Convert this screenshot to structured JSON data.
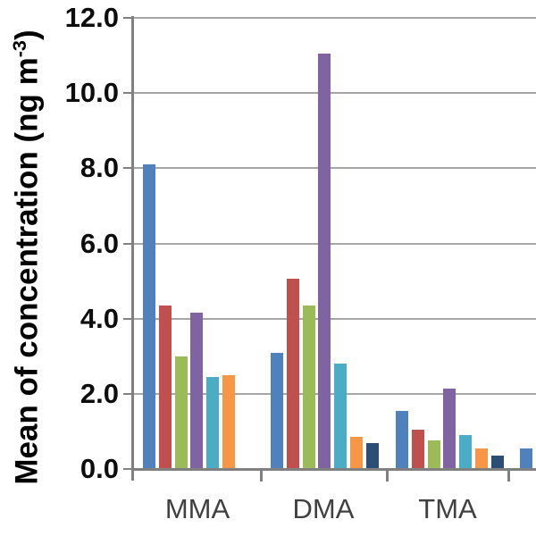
{
  "chart_data": {
    "type": "bar",
    "title": "",
    "xlabel": "",
    "ylabel_prefix": "Mean of concentration (ng m",
    "ylabel_superscript": "-3",
    "ylabel_suffix": ")",
    "ylim": [
      0,
      12
    ],
    "ytick_step": 2.0,
    "ytick_labels": [
      "12.0",
      "10.0",
      "8.0",
      "6.0",
      "4.0",
      "2.0",
      "0.0"
    ],
    "grid": true,
    "legend_visible": false,
    "categories": [
      "MMA",
      "DMA",
      "TMA"
    ],
    "series": [
      {
        "color_name": "blue",
        "color": "#4F81BD",
        "values": [
          8.1,
          3.1,
          1.55
        ]
      },
      {
        "color_name": "red",
        "color": "#C0504D",
        "values": [
          4.35,
          5.05,
          1.05
        ]
      },
      {
        "color_name": "green",
        "color": "#9BBB59",
        "values": [
          3.0,
          4.35,
          0.75
        ]
      },
      {
        "color_name": "purple",
        "color": "#8064A2",
        "values": [
          4.15,
          11.05,
          2.15
        ]
      },
      {
        "color_name": "cyan",
        "color": "#4BACC6",
        "values": [
          2.45,
          2.8,
          0.9
        ]
      },
      {
        "color_name": "orange",
        "color": "#F79646",
        "values": [
          2.5,
          0.85,
          0.55
        ]
      },
      {
        "color_name": "dark-blue",
        "color": "#2C4D75",
        "values": [
          0,
          0.7,
          0.35
        ]
      }
    ],
    "offscreen_fourth_category": {
      "label_visible": false,
      "visible_values_blue_series": [
        0.55
      ]
    },
    "axis_color": "#808080",
    "gridline_color": "#A6A6A6",
    "tick_text_color": "#0d0d0d",
    "category_text_color": "#404040",
    "background_color": "#ffffff"
  }
}
